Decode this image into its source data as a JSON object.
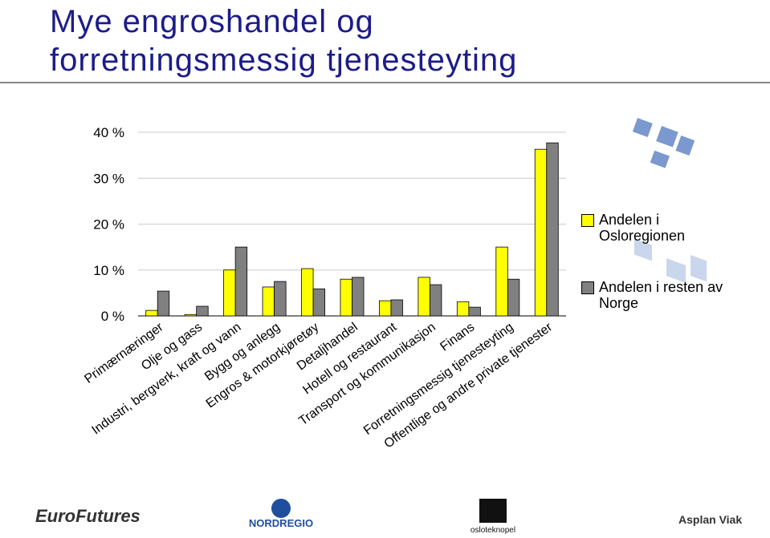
{
  "title_lines": [
    "Mye engroshandel og",
    "forretningsmessig tjenesteyting"
  ],
  "chart_data": {
    "type": "bar",
    "categories": [
      "Primærnæringer",
      "Olje og gass",
      "Industri, bergverk, kraft og vann",
      "Bygg og anlegg",
      "Engros & motorkjøretøy",
      "Detaljhandel",
      "Hotell og restaurant",
      "Transport og kommunikasjon",
      "Finans",
      "Forretningsmessig tjenesteyting",
      "Offentlige og andre private tjenester"
    ],
    "series": [
      {
        "name": "Andelen i Osloregionen",
        "color": "#ffff00",
        "values": [
          1.2,
          0.3,
          10.0,
          6.3,
          10.3,
          8.0,
          3.3,
          8.4,
          3.1,
          15.0,
          36.3
        ]
      },
      {
        "name": "Andelen i resten av Norge",
        "color": "#808080",
        "values": [
          5.4,
          2.1,
          15.0,
          7.5,
          5.9,
          8.4,
          3.5,
          6.8,
          1.9,
          8.0,
          37.7
        ]
      }
    ],
    "ylim": [
      0,
      40
    ],
    "yticks": [
      {
        "value": 0,
        "label": "0 %"
      },
      {
        "value": 10,
        "label": "10 %"
      },
      {
        "value": 20,
        "label": "20 %"
      },
      {
        "value": 30,
        "label": "30 %"
      },
      {
        "value": 40,
        "label": "40 %"
      }
    ],
    "grid": true,
    "legend": "right"
  },
  "logos": [
    "EuroFutures",
    "NORDREGIO",
    "osloteknopel",
    "Asplan Viak"
  ]
}
